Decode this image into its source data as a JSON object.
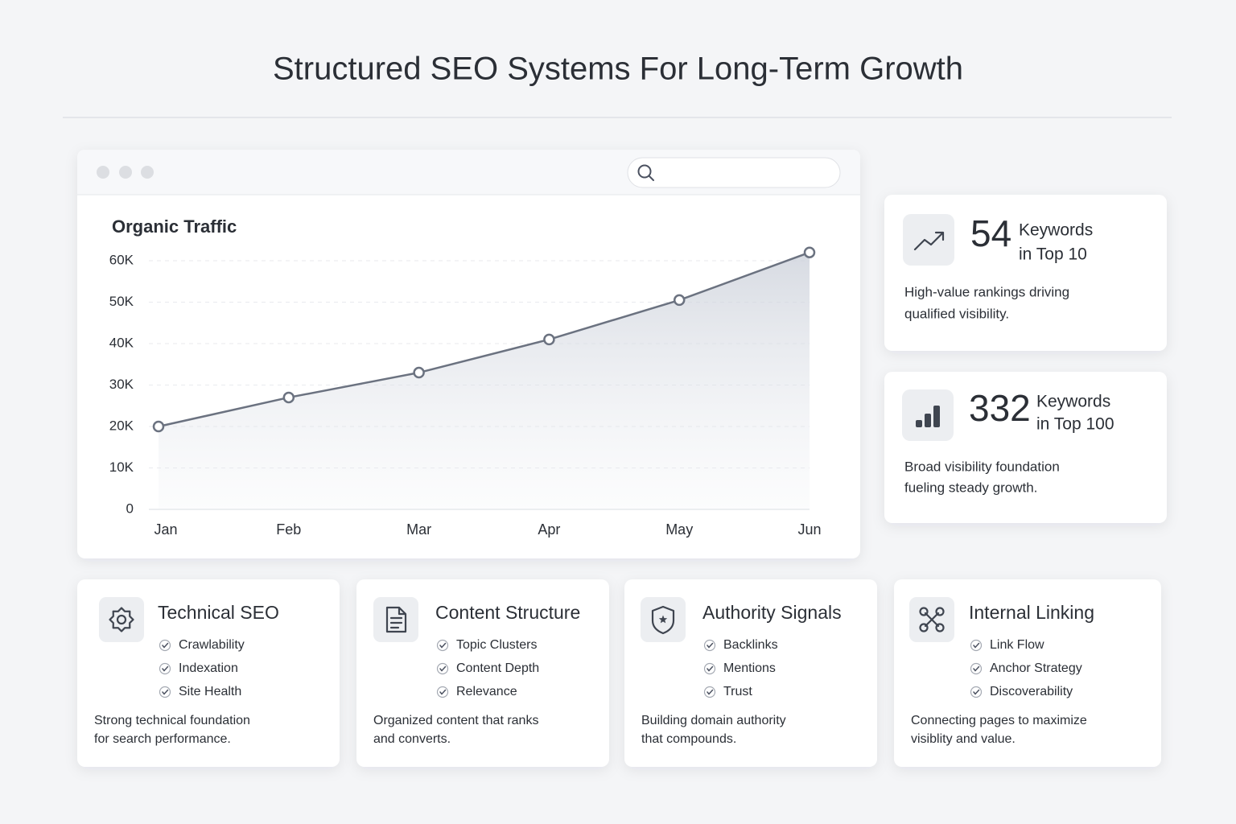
{
  "title": "Structured SEO Systems For Long-Term Growth",
  "chart_data": {
    "type": "line",
    "title": "Organic Traffic",
    "categories": [
      "Jan",
      "Feb",
      "Mar",
      "Apr",
      "May",
      "Jun"
    ],
    "values": [
      20000,
      27000,
      33000,
      41000,
      50500,
      62000
    ],
    "color": "#6b7280",
    "ylim": [
      0,
      64000
    ],
    "yticks": [
      0,
      {
        "value": 10000,
        "label": "10K"
      },
      {
        "value": 20000,
        "label": "20K"
      },
      {
        "value": 30000,
        "label": "30K"
      },
      {
        "value": 40000,
        "label": "40K"
      },
      {
        "value": 50000,
        "label": "50K"
      },
      {
        "value": 60000,
        "label": "60K"
      }
    ],
    "grid": true
  },
  "stats": [
    {
      "number": "54",
      "label": [
        "Keywords",
        "in Top 10"
      ],
      "description": [
        "High-value rankings driving",
        "qualified visibility."
      ]
    },
    {
      "number": "332",
      "label": [
        "Keywords",
        "in Top 100"
      ],
      "description": [
        "Broad visibility foundation",
        "fueling steady growth."
      ]
    }
  ],
  "cards": [
    {
      "title": "Technical SEO",
      "items": [
        "Crawlability",
        "Indexation",
        "Site Health"
      ],
      "description": [
        "Strong technical foundation",
        "for search performance."
      ]
    },
    {
      "title": "Content Structure",
      "items": [
        "Topic Clusters",
        "Content Depth",
        "Relevance"
      ],
      "description": [
        "Organized content that ranks",
        "and converts."
      ]
    },
    {
      "title": "Authority Signals",
      "items": [
        "Backlinks",
        "Mentions",
        "Trust"
      ],
      "description": [
        "Building domain authority",
        "that compounds."
      ]
    },
    {
      "title": "Internal Linking",
      "items": [
        "Link Flow",
        "Anchor Strategy",
        "Discoverability"
      ],
      "description": [
        "Connecting pages to maximize",
        "visiblity and value."
      ]
    }
  ]
}
